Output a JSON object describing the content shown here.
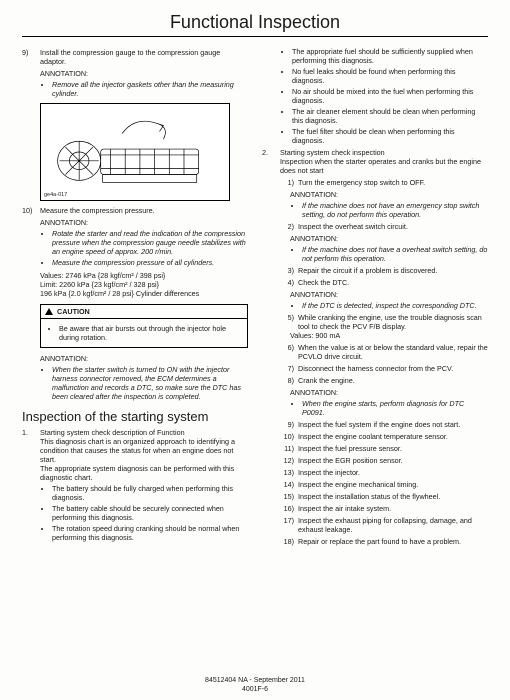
{
  "title": "Functional Inspection",
  "left": {
    "step9": {
      "num": "9)",
      "text": "Install the compression gauge to the compression gauge adaptor.",
      "anno_label": "ANNOTATION:",
      "anno_bullets": [
        "Remove all the injector gaskets other than the measuring cylinder."
      ],
      "fig_label": "ge4a-017"
    },
    "step10": {
      "num": "10)",
      "text": "Measure the compression pressure.",
      "anno_label": "ANNOTATION:",
      "anno_bullets": [
        "Rotate the starter and read the indication of the compression pressure when the compression gauge needle stabilizes with an engine speed of approx. 200 r/min.",
        "Measure the compression pressure of all cylinders."
      ],
      "values_l1": "Values: 2746 kPa {28 kgf/cm² / 398 psi}",
      "values_l2": "Limit: 2260 kPa {23 kgf/cm² / 328 psi}",
      "values_l3": "196 kPa {2.0 kgf/cm² / 28 psi} Cylinder differences"
    },
    "caution": {
      "head": "CAUTION",
      "bullets": [
        "Be aware that air bursts out through the injector hole during rotation."
      ]
    },
    "anno2": {
      "label": "ANNOTATION:",
      "bullets": [
        "When the starter switch is turned to ON with the injector harness connector removed, the ECM determines a malfunction and records a DTC, so make sure the DTC has been cleared after the inspection is completed."
      ]
    },
    "section_header": "Inspection of the starting system",
    "desc1": {
      "num": "1.",
      "line1": "Starting system check description of Function",
      "line2": "This diagnosis chart is an organized approach to identifying a condition that causes the status for when an engine does not start.",
      "line3": "The appropriate system diagnosis can be performed with this diagnostic chart.",
      "bullets": [
        "The battery should be fully charged when performing this diagnosis.",
        "The battery cable should be securely connected when performing this diagnosis.",
        "The rotation speed during cranking should be normal when performing this diagnosis."
      ]
    }
  },
  "right": {
    "top_bullets": [
      "The appropriate fuel should be sufficiently supplied when performing this diagnosis.",
      "No fuel leaks should be found when performing this diagnosis.",
      "No air should be mixed into the fuel when performing this diagnosis.",
      "The air cleaner element should be clean when performing this diagnosis.",
      "The fuel filter should be clean when performing this diagnosis."
    ],
    "step2": {
      "num": "2.",
      "line1": "Starting system check inspection",
      "line2": "Inspection when the starter operates and cranks but the engine does not start"
    },
    "sub": [
      {
        "n": "1)",
        "t": "Turn the emergency stop switch to OFF.",
        "anno": "ANNOTATION:",
        "ab": [
          "If the machine does not have an emergency stop switch setting, do not perform this operation."
        ]
      },
      {
        "n": "2)",
        "t": "Inspect the overheat switch circuit.",
        "anno": "ANNOTATION:",
        "ab": [
          "If the machine does not have a overheat switch setting, do not perform this operation."
        ]
      },
      {
        "n": "3)",
        "t": "Repair the circuit if a problem is discovered."
      },
      {
        "n": "4)",
        "t": "Check the DTC.",
        "anno": "ANNOTATION:",
        "ab": [
          "If the DTC is detected, inspect the corresponding DTC."
        ]
      },
      {
        "n": "5)",
        "t": "While cranking the engine, use the trouble diagnosis scan tool to check the PCV F/B display.",
        "extra": "Values: 900 mA"
      },
      {
        "n": "6)",
        "t": "When the value is at or below the standard value, repair the PCVLO drive circuit."
      },
      {
        "n": "7)",
        "t": "Disconnect the harness connector from the PCV."
      },
      {
        "n": "8)",
        "t": "Crank the engine.",
        "anno": "ANNOTATION:",
        "ab": [
          "When the engine starts, perform diagnosis for DTC P0091."
        ]
      },
      {
        "n": "9)",
        "t": "Inspect the fuel system if the engine does not start."
      },
      {
        "n": "10)",
        "t": "Inspect the engine coolant temperature sensor."
      },
      {
        "n": "11)",
        "t": "Inspect the fuel pressure sensor."
      },
      {
        "n": "12)",
        "t": "Inspect the EGR position sensor."
      },
      {
        "n": "13)",
        "t": "Inspect the injector."
      },
      {
        "n": "14)",
        "t": "Inspect the engine mechanical timing."
      },
      {
        "n": "15)",
        "t": "Inspect the installation status of the flywheel."
      },
      {
        "n": "16)",
        "t": "Inspect the air intake system."
      },
      {
        "n": "17)",
        "t": "Inspect the exhaust piping for collapsing, damage, and exhaust leakage."
      },
      {
        "n": "18)",
        "t": "Repair or replace the part found to have a problem."
      }
    ]
  },
  "footer": {
    "l1": "84512404 NA - September 2011",
    "l2": "4001F-6"
  }
}
